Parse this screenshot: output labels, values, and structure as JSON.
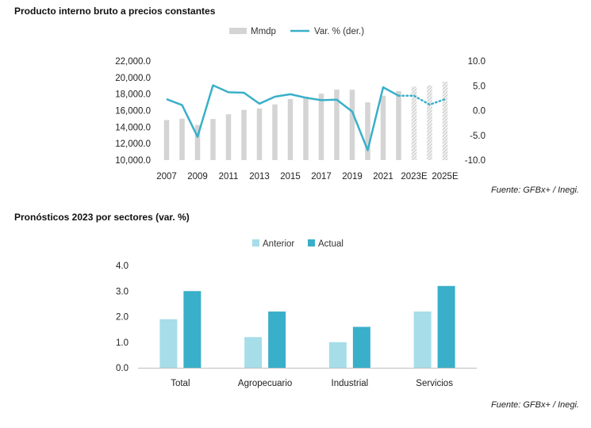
{
  "chart1": {
    "title": "Producto interno bruto a precios constantes",
    "source": "Fuente: GFBx+ / Inegi.",
    "chart_data": {
      "type": "bar",
      "title": "Producto interno bruto a precios constantes",
      "series": [
        {
          "name": "Mmdp",
          "type": "bar",
          "axis": "left",
          "color": "#d4d4d4",
          "x": [
            2007,
            2008,
            2009,
            2010,
            2011,
            2012,
            2013,
            2014,
            2015,
            2016,
            2017,
            2018,
            2019,
            2020,
            2021,
            2022,
            2023,
            2024,
            2025
          ],
          "values": [
            14850,
            15020,
            14250,
            14980,
            15550,
            16080,
            16260,
            16750,
            17400,
            17700,
            18050,
            18550,
            18520,
            17000,
            17800,
            18350,
            18900,
            19050,
            19500
          ],
          "forecast_from": 2023
        },
        {
          "name": "Var. % (der.)",
          "type": "line",
          "axis": "right",
          "color": "#3aafc9",
          "x": [
            2007,
            2008,
            2009,
            2010,
            2011,
            2012,
            2013,
            2014,
            2015,
            2016,
            2017,
            2018,
            2019,
            2020,
            2021,
            2022,
            2023,
            2024,
            2025
          ],
          "values": [
            2.3,
            1.1,
            -5.3,
            5.1,
            3.7,
            3.6,
            1.4,
            2.8,
            3.3,
            2.6,
            2.1,
            2.2,
            -0.2,
            -8.0,
            4.7,
            3.0,
            3.0,
            1.2,
            2.3
          ],
          "forecast_from": 2022
        }
      ],
      "xticks": [
        "2007",
        "2009",
        "2011",
        "2013",
        "2015",
        "2017",
        "2019",
        "2021",
        "2023E",
        "2025E"
      ],
      "yleft_ticks": [
        "10,000.0",
        "12,000.0",
        "14,000.0",
        "16,000.0",
        "18,000.0",
        "20,000.0",
        "22,000.0"
      ],
      "yright_ticks": [
        "-10.0",
        "-5.0",
        "0.0",
        "5.0",
        "10.0"
      ],
      "yleft_lim": [
        10000,
        22000
      ],
      "yright_lim": [
        -10,
        10
      ],
      "legend": "top-center",
      "grid": false
    }
  },
  "chart2": {
    "title": "Pronósticos 2023 por sectores (var. %)",
    "source": "Fuente: GFBx+ / Inegi.",
    "chart_data": {
      "type": "bar",
      "title": "Pronósticos 2023 por sectores (var. %)",
      "categories": [
        "Total",
        "Agropecuario",
        "Industrial",
        "Servicios"
      ],
      "series": [
        {
          "name": "Anterior",
          "color": "#a6dde8",
          "values": [
            1.9,
            1.2,
            1.0,
            2.2
          ]
        },
        {
          "name": "Actual",
          "color": "#3aafc9",
          "values": [
            3.0,
            2.2,
            1.6,
            3.2
          ]
        }
      ],
      "yticks": [
        "0.0",
        "1.0",
        "2.0",
        "3.0",
        "4.0"
      ],
      "ylim": [
        0,
        4
      ],
      "legend": "top-center",
      "grid": false
    }
  }
}
